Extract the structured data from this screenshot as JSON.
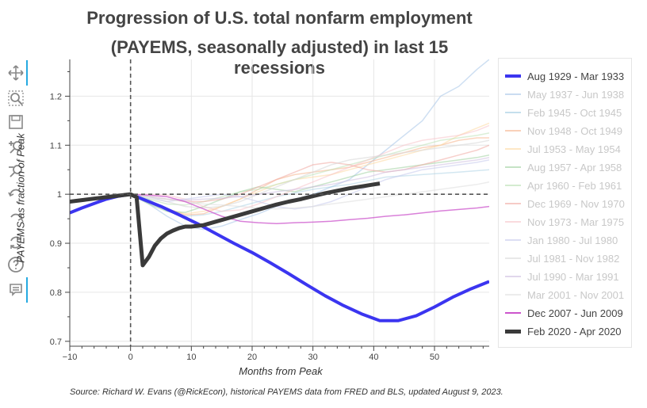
{
  "title_line1": "Progression of U.S. total nonfarm employment",
  "title_line2": "(PAYEMS, seasonally adjusted) in last 15 recessions",
  "toolbar": {
    "tools": [
      {
        "name": "pan-tool-icon",
        "active": true
      },
      {
        "name": "box-zoom-tool-icon",
        "active": false
      },
      {
        "name": "save-tool-icon",
        "active": false
      },
      {
        "name": "zoom-in-tool-icon",
        "active": false
      },
      {
        "name": "zoom-out-tool-icon",
        "active": false
      },
      {
        "name": "undo-tool-icon",
        "active": false
      },
      {
        "name": "redo-tool-icon",
        "active": false
      },
      {
        "name": "reset-tool-icon",
        "active": false
      },
      {
        "name": "help-tool-icon",
        "active": false
      },
      {
        "name": "hover-tool-icon",
        "active": true
      }
    ]
  },
  "source": "Source: Richard W. Evans (@RickEcon), historical PAYEMS data from FRED and BLS, updated August 9, 2023.",
  "chart_data": {
    "type": "line",
    "xlabel": "Months from Peak",
    "ylabel": "PAYEMS as fraction of Peak",
    "xlim": [
      -10,
      59
    ],
    "ylim": [
      0.69,
      1.275
    ],
    "xticks": [
      -10,
      0,
      10,
      20,
      30,
      40,
      50
    ],
    "yticks": [
      0.7,
      0.8,
      0.9,
      1,
      1.1,
      1.2
    ],
    "ytick_labels": [
      "0.7",
      "0.8",
      "0.9",
      "1",
      "1.1",
      "1.2"
    ],
    "xtick_labels": [
      "−10",
      "0",
      "10",
      "20",
      "30",
      "40",
      "50"
    ],
    "grid": true,
    "legend_position": "right",
    "reference_lines": [
      {
        "orientation": "vertical",
        "value": 0,
        "style": "dashed"
      },
      {
        "orientation": "horizontal",
        "value": 1,
        "style": "dashed"
      }
    ],
    "series": [
      {
        "name": "Aug 1929 - Mar 1933",
        "color": "#3b35f0",
        "width": 4,
        "opacity": 1,
        "highlight": true,
        "x": [
          -10,
          -8,
          -6,
          -4,
          -2,
          0,
          2,
          5,
          8,
          11,
          14,
          17,
          20,
          23,
          26,
          29,
          32,
          35,
          38,
          41,
          44,
          47,
          50,
          53,
          56,
          59
        ],
        "y": [
          0.962,
          0.972,
          0.981,
          0.99,
          0.996,
          1.0,
          0.99,
          0.975,
          0.958,
          0.94,
          0.92,
          0.9,
          0.881,
          0.86,
          0.838,
          0.815,
          0.793,
          0.773,
          0.756,
          0.742,
          0.742,
          0.752,
          0.77,
          0.79,
          0.807,
          0.822
        ]
      },
      {
        "name": "May 1937 - Jun 1938",
        "color": "#a6c4e8",
        "width": 1.5,
        "opacity": 0.55,
        "highlight": false,
        "x": [
          0,
          3,
          6,
          9,
          12,
          15,
          18,
          21,
          24,
          27,
          30,
          33,
          36,
          39,
          42,
          45,
          48,
          51,
          54,
          57,
          59
        ],
        "y": [
          1.0,
          0.98,
          0.955,
          0.935,
          0.928,
          0.935,
          0.948,
          0.96,
          0.975,
          0.99,
          1.0,
          1.015,
          1.03,
          1.06,
          1.09,
          1.12,
          1.15,
          1.2,
          1.22,
          1.255,
          1.275
        ]
      },
      {
        "name": "Feb 1945 - Oct 1945",
        "color": "#9ecae1",
        "width": 1.5,
        "opacity": 0.45,
        "highlight": false,
        "x": [
          0,
          3,
          6,
          9,
          12,
          15,
          18,
          21,
          24,
          30,
          36,
          42,
          48,
          54,
          59
        ],
        "y": [
          1.0,
          0.99,
          0.965,
          0.955,
          0.958,
          0.965,
          0.975,
          0.985,
          0.995,
          1.01,
          1.02,
          1.035,
          1.04,
          1.045,
          1.05
        ]
      },
      {
        "name": "Nov 1948 - Oct 1949",
        "color": "#f5b28a",
        "width": 1.5,
        "opacity": 0.55,
        "highlight": false,
        "x": [
          0,
          3,
          6,
          9,
          12,
          15,
          18,
          21,
          24,
          27,
          30,
          33,
          36,
          39,
          42,
          45,
          48,
          51,
          54,
          57,
          59
        ],
        "y": [
          1.0,
          0.985,
          0.97,
          0.958,
          0.96,
          0.975,
          0.99,
          1.01,
          1.03,
          1.04,
          1.045,
          1.05,
          1.055,
          1.065,
          1.075,
          1.085,
          1.095,
          1.1,
          1.11,
          1.115,
          1.115
        ]
      },
      {
        "name": "Jul 1953 - May 1954",
        "color": "#fdd9a0",
        "width": 1.5,
        "opacity": 0.55,
        "highlight": false,
        "x": [
          0,
          3,
          6,
          9,
          12,
          15,
          18,
          21,
          24,
          27,
          30,
          33,
          36,
          39,
          42,
          45,
          48,
          51,
          54,
          57,
          59
        ],
        "y": [
          1.0,
          0.985,
          0.97,
          0.96,
          0.965,
          0.975,
          0.99,
          1.005,
          1.02,
          1.03,
          1.035,
          1.04,
          1.05,
          1.06,
          1.07,
          1.08,
          1.09,
          1.1,
          1.12,
          1.135,
          1.145
        ]
      },
      {
        "name": "Aug 1957 - Apr 1958",
        "color": "#9ed09e",
        "width": 1.5,
        "opacity": 0.55,
        "highlight": false,
        "x": [
          0,
          3,
          6,
          9,
          12,
          15,
          18,
          21,
          24,
          27,
          30,
          33,
          36,
          39,
          42,
          45,
          48,
          51,
          54,
          57,
          59
        ],
        "y": [
          1.0,
          0.98,
          0.965,
          0.963,
          0.975,
          0.99,
          1.005,
          1.015,
          1.01,
          1.005,
          1.015,
          1.025,
          1.035,
          1.045,
          1.05,
          1.055,
          1.06,
          1.065,
          1.07,
          1.075,
          1.08
        ]
      },
      {
        "name": "Apr 1960 - Feb 1961",
        "color": "#b8e0b0",
        "width": 1.5,
        "opacity": 0.5,
        "highlight": false,
        "x": [
          0,
          3,
          6,
          9,
          12,
          15,
          18,
          21,
          24,
          27,
          30,
          33,
          36,
          39,
          42,
          45,
          48,
          51,
          54,
          57,
          59
        ],
        "y": [
          1.0,
          0.99,
          0.98,
          0.978,
          0.985,
          0.995,
          1.005,
          1.01,
          1.02,
          1.03,
          1.04,
          1.05,
          1.06,
          1.07,
          1.08,
          1.09,
          1.1,
          1.11,
          1.115,
          1.12,
          1.125
        ]
      },
      {
        "name": "Dec 1969 - Nov 1970",
        "color": "#f0a8a0",
        "width": 1.5,
        "opacity": 0.55,
        "highlight": false,
        "x": [
          0,
          3,
          6,
          9,
          12,
          15,
          18,
          21,
          24,
          27,
          30,
          33,
          36,
          39,
          42,
          45,
          48,
          51,
          54,
          57,
          59
        ],
        "y": [
          1.0,
          0.995,
          0.99,
          0.985,
          0.985,
          0.99,
          1.0,
          1.015,
          1.03,
          1.045,
          1.06,
          1.065,
          1.06,
          1.05,
          1.045,
          1.05,
          1.06,
          1.07,
          1.08,
          1.09,
          1.1
        ]
      },
      {
        "name": "Nov 1973 - Mar 1975",
        "color": "#f7c3c8",
        "width": 1.5,
        "opacity": 0.55,
        "highlight": false,
        "x": [
          0,
          3,
          6,
          9,
          12,
          15,
          18,
          21,
          24,
          27,
          30,
          33,
          36,
          39,
          42,
          45,
          48,
          51,
          54,
          57,
          59
        ],
        "y": [
          1.0,
          1.0,
          0.998,
          0.99,
          0.975,
          0.965,
          0.968,
          0.98,
          0.995,
          1.01,
          1.025,
          1.04,
          1.055,
          1.07,
          1.085,
          1.1,
          1.11,
          1.115,
          1.12,
          1.13,
          1.14
        ]
      },
      {
        "name": "Jan 1980 - Jul 1980",
        "color": "#c5c8ec",
        "width": 1.5,
        "opacity": 0.55,
        "highlight": false,
        "x": [
          0,
          3,
          6,
          9,
          12,
          15,
          18,
          21,
          24,
          27,
          30,
          33,
          36,
          39,
          42,
          45,
          48,
          51,
          54,
          57,
          59
        ],
        "y": [
          1.0,
          0.995,
          0.985,
          0.99,
          0.995,
          1.0,
          0.995,
          0.985,
          0.975,
          0.97,
          0.975,
          0.985,
          1.0,
          1.015,
          1.03,
          1.04,
          1.05,
          1.055,
          1.06,
          1.065,
          1.07
        ]
      },
      {
        "name": "Jul 1981 - Nov 1982",
        "color": "#d8d8d8",
        "width": 1.5,
        "opacity": 0.6,
        "highlight": false,
        "x": [
          0,
          3,
          6,
          9,
          12,
          15,
          18,
          21,
          24,
          27,
          30,
          33,
          36,
          39,
          42,
          45,
          48,
          51,
          54,
          57,
          59
        ],
        "y": [
          1.0,
          0.992,
          0.985,
          0.975,
          0.972,
          0.975,
          0.985,
          1.0,
          1.015,
          1.03,
          1.045,
          1.06,
          1.07,
          1.075,
          1.08,
          1.085,
          1.09,
          1.095,
          1.1,
          1.105,
          1.11
        ]
      },
      {
        "name": "Jul 1990 - Mar 1991",
        "color": "#cdbde0",
        "width": 1.5,
        "opacity": 0.55,
        "highlight": false,
        "x": [
          0,
          3,
          6,
          9,
          12,
          15,
          18,
          21,
          24,
          27,
          30,
          33,
          36,
          39,
          42,
          45,
          48,
          51,
          54,
          57,
          59
        ],
        "y": [
          1.0,
          0.995,
          0.99,
          0.988,
          0.99,
          0.992,
          0.995,
          1.0,
          1.005,
          1.01,
          1.015,
          1.02,
          1.028,
          1.035,
          1.045,
          1.05,
          1.055,
          1.06,
          1.065,
          1.07,
          1.075
        ]
      },
      {
        "name": "Mar 2001 - Nov 2001",
        "color": "#e0e0e0",
        "width": 1.5,
        "opacity": 0.6,
        "highlight": false,
        "x": [
          0,
          3,
          6,
          9,
          12,
          15,
          18,
          21,
          24,
          27,
          30,
          33,
          36,
          39,
          42,
          45,
          48,
          51,
          54,
          57,
          59
        ],
        "y": [
          1.0,
          0.995,
          0.99,
          0.985,
          0.98,
          0.978,
          0.975,
          0.972,
          0.97,
          0.972,
          0.975,
          0.98,
          0.985,
          0.99,
          0.995,
          1.0,
          1.005,
          1.01,
          1.015,
          1.02,
          1.025
        ]
      },
      {
        "name": "Dec 2007 - Jun 2009",
        "color": "#cc55cc",
        "width": 1.5,
        "opacity": 0.75,
        "highlight": true,
        "x": [
          0,
          3,
          6,
          9,
          12,
          15,
          18,
          21,
          24,
          27,
          30,
          33,
          36,
          39,
          42,
          45,
          48,
          51,
          54,
          57,
          59
        ],
        "y": [
          1.0,
          0.998,
          0.995,
          0.985,
          0.97,
          0.955,
          0.945,
          0.942,
          0.94,
          0.942,
          0.943,
          0.945,
          0.948,
          0.951,
          0.955,
          0.958,
          0.962,
          0.966,
          0.969,
          0.972,
          0.975
        ]
      },
      {
        "name": "Feb 2020 - Apr 2020",
        "color": "#3a3a3a",
        "width": 5,
        "opacity": 1,
        "highlight": true,
        "x": [
          -10,
          -8,
          -6,
          -4,
          -2,
          0,
          1,
          2,
          3,
          4,
          5,
          6,
          7,
          8,
          9,
          10,
          12,
          14,
          16,
          18,
          20,
          22,
          24,
          26,
          28,
          30,
          32,
          34,
          36,
          38,
          40,
          41
        ],
        "y": [
          0.985,
          0.988,
          0.991,
          0.994,
          0.997,
          1.0,
          0.994,
          0.855,
          0.872,
          0.895,
          0.91,
          0.92,
          0.926,
          0.931,
          0.934,
          0.934,
          0.937,
          0.944,
          0.951,
          0.958,
          0.965,
          0.972,
          0.979,
          0.985,
          0.99,
          0.996,
          1.002,
          1.007,
          1.012,
          1.016,
          1.02,
          1.022
        ]
      }
    ]
  }
}
